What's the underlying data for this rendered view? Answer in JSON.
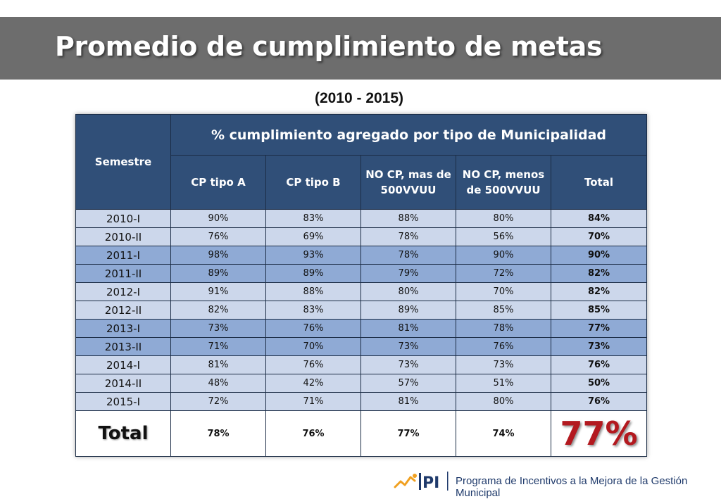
{
  "title": "Promedio de cumplimiento de metas",
  "subtitle": "(2010 - 2015)",
  "table": {
    "semestre_header": "Semestre",
    "group_header": "% cumplimiento agregado por tipo de Municipalidad",
    "columns": [
      "CP tipo A",
      "CP tipo B",
      "NO CP, mas de 500VVUU",
      "NO CP, menos de 500VVUU",
      "Total"
    ],
    "rows": [
      {
        "sem": "2010-I",
        "vals": [
          "90%",
          "83%",
          "88%",
          "80%",
          "84%"
        ],
        "shade": "light"
      },
      {
        "sem": "2010-II",
        "vals": [
          "76%",
          "69%",
          "78%",
          "56%",
          "70%"
        ],
        "shade": "light"
      },
      {
        "sem": "2011-I",
        "vals": [
          "98%",
          "93%",
          "78%",
          "90%",
          "90%"
        ],
        "shade": "dark"
      },
      {
        "sem": "2011-II",
        "vals": [
          "89%",
          "89%",
          "79%",
          "72%",
          "82%"
        ],
        "shade": "dark"
      },
      {
        "sem": "2012-I",
        "vals": [
          "91%",
          "88%",
          "80%",
          "70%",
          "82%"
        ],
        "shade": "light"
      },
      {
        "sem": "2012-II",
        "vals": [
          "82%",
          "83%",
          "89%",
          "85%",
          "85%"
        ],
        "shade": "light"
      },
      {
        "sem": "2013-I",
        "vals": [
          "73%",
          "76%",
          "81%",
          "78%",
          "77%"
        ],
        "shade": "dark"
      },
      {
        "sem": "2013-II",
        "vals": [
          "71%",
          "70%",
          "73%",
          "76%",
          "73%"
        ],
        "shade": "dark"
      },
      {
        "sem": "2014-I",
        "vals": [
          "81%",
          "76%",
          "73%",
          "73%",
          "76%"
        ],
        "shade": "light"
      },
      {
        "sem": "2014-II",
        "vals": [
          "48%",
          "42%",
          "57%",
          "51%",
          "50%"
        ],
        "shade": "light"
      },
      {
        "sem": "2015-I",
        "vals": [
          "72%",
          "71%",
          "81%",
          "80%",
          "76%"
        ],
        "shade": "light"
      }
    ],
    "total_row": {
      "label": "Total",
      "vals": [
        "78%",
        "76%",
        "77%",
        "74%",
        "77%"
      ]
    }
  },
  "footer": {
    "logo_text": "PI",
    "text": "Programa de Incentivos a la Mejora de la Gestión Municipal"
  },
  "colors": {
    "title_bar": "#6d6d6d",
    "header_bg": "#304f78",
    "row_light": "#ccd7eb",
    "row_dark": "#8faad5",
    "total_accent": "#b3191f",
    "logo_blue": "#1f3a6b",
    "logo_orange": "#f0a020"
  }
}
